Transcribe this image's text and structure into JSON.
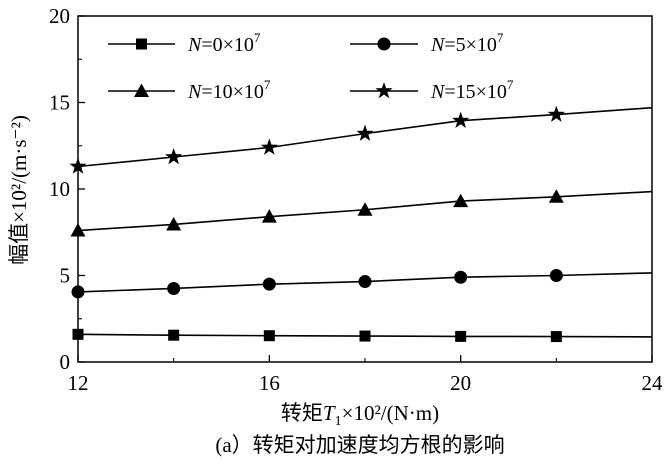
{
  "chart_data": {
    "type": "line",
    "caption": "(a）转矩对加速度均方根的影响",
    "xlabel": {
      "prefix": "转矩",
      "var": "T",
      "sub": "1",
      "rest": "×10²/(N·m)"
    },
    "ylabel": "幅值×10²/(m·s⁻²)",
    "xlim": [
      12,
      24
    ],
    "ylim": [
      0,
      20
    ],
    "xticks": [
      12,
      16,
      20,
      24
    ],
    "yticks": [
      0,
      5,
      10,
      15,
      20
    ],
    "grid": false,
    "legend_placement": "top",
    "x": [
      12,
      14,
      16,
      18,
      20,
      22,
      24
    ],
    "series": [
      {
        "name_var": "N",
        "name_rest": "=0×10",
        "name_exp": "7",
        "marker": "square",
        "values": [
          1.6,
          1.55,
          1.52,
          1.5,
          1.48,
          1.47,
          1.45
        ]
      },
      {
        "name_var": "N",
        "name_rest": "=5×10",
        "name_exp": "7",
        "marker": "circle",
        "values": [
          4.05,
          4.25,
          4.5,
          4.65,
          4.9,
          5.0,
          5.15
        ]
      },
      {
        "name_var": "N",
        "name_rest": "=10×10",
        "name_exp": "7",
        "marker": "triangle",
        "values": [
          7.6,
          7.95,
          8.4,
          8.8,
          9.3,
          9.55,
          9.85
        ]
      },
      {
        "name_var": "N",
        "name_rest": "=15×10",
        "name_exp": "7",
        "marker": "star",
        "values": [
          11.3,
          11.85,
          12.4,
          13.2,
          13.95,
          14.3,
          14.7
        ]
      }
    ]
  }
}
